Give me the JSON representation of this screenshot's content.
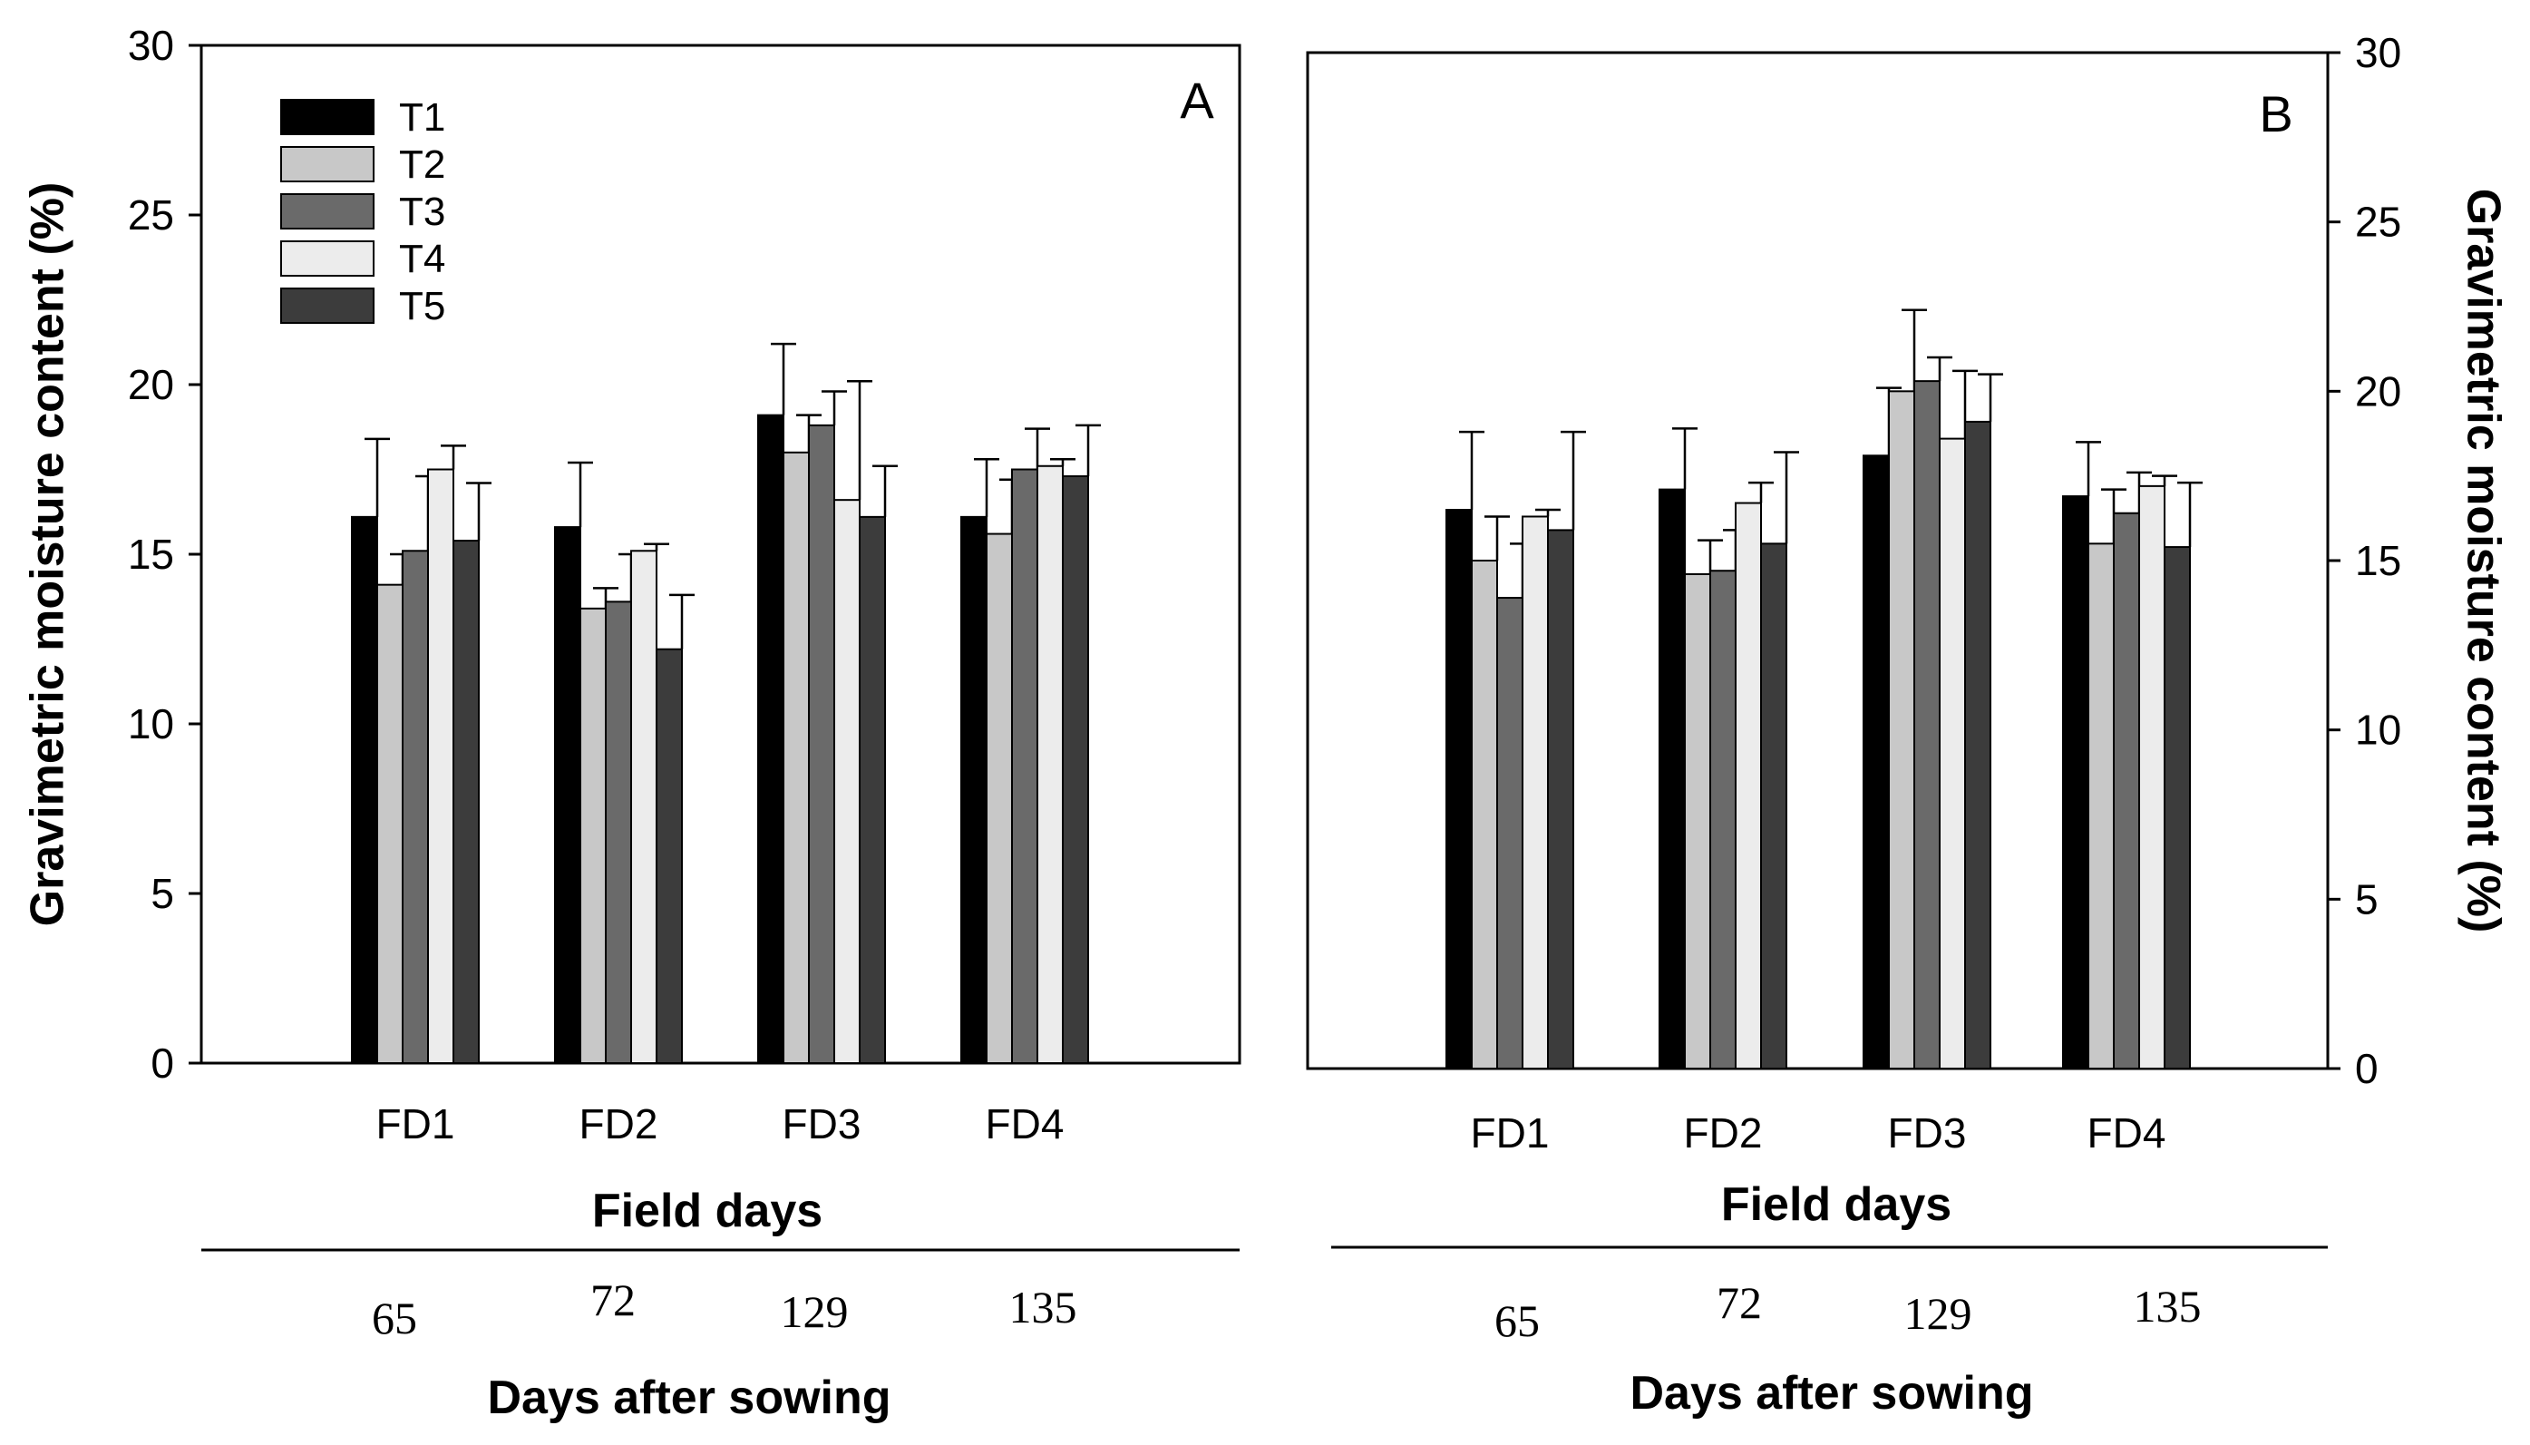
{
  "colors": {
    "T1": "#000000",
    "T2": "#c8c8c8",
    "T3": "#6a6a6a",
    "T4": "#ececec",
    "T5": "#3c3c3c",
    "axis": "#000000"
  },
  "chart_data": [
    {
      "type": "bar",
      "panel_label": "A",
      "ylabel": "Gravimetric moisture content (%)",
      "xlabel": "Field days",
      "secondary_xlabel": "Days after sowing",
      "ylim": [
        0,
        30
      ],
      "yticks": [
        "0",
        "5",
        "10",
        "15",
        "20",
        "25",
        "30"
      ],
      "categories": [
        "FD1",
        "FD2",
        "FD3",
        "FD4"
      ],
      "days_after_sowing": [
        "65",
        "72",
        "129",
        "135"
      ],
      "legend": [
        "T1",
        "T2",
        "T3",
        "T4",
        "T5"
      ],
      "legend_position": "top-left",
      "series": [
        {
          "name": "T1",
          "values": [
            16.1,
            15.8,
            19.1,
            16.1
          ],
          "errors": [
            2.3,
            1.9,
            2.1,
            1.7
          ]
        },
        {
          "name": "T2",
          "values": [
            14.1,
            13.4,
            18.0,
            15.6
          ],
          "errors": [
            0.9,
            0.6,
            1.1,
            1.6
          ]
        },
        {
          "name": "T3",
          "values": [
            15.1,
            13.6,
            18.8,
            17.5
          ],
          "errors": [
            2.2,
            1.4,
            1.0,
            1.2
          ]
        },
        {
          "name": "T4",
          "values": [
            17.5,
            15.1,
            16.6,
            17.6
          ],
          "errors": [
            0.7,
            0.2,
            3.5,
            0.2
          ]
        },
        {
          "name": "T5",
          "values": [
            15.4,
            12.2,
            16.1,
            17.3
          ],
          "errors": [
            1.7,
            1.6,
            1.5,
            1.5
          ]
        }
      ]
    },
    {
      "type": "bar",
      "panel_label": "B",
      "ylabel": "Gravimetric moisture content (%)",
      "xlabel": "Field days",
      "secondary_xlabel": "Days after sowing",
      "ylim": [
        0,
        30
      ],
      "yticks": [
        "0",
        "5",
        "10",
        "15",
        "20",
        "25",
        "30"
      ],
      "categories": [
        "FD1",
        "FD2",
        "FD3",
        "FD4"
      ],
      "days_after_sowing": [
        "65",
        "72",
        "129",
        "135"
      ],
      "series": [
        {
          "name": "T1",
          "values": [
            16.5,
            17.1,
            18.1,
            16.9
          ],
          "errors": [
            2.3,
            1.8,
            2.0,
            1.6
          ]
        },
        {
          "name": "T2",
          "values": [
            15.0,
            14.6,
            20.0,
            15.5
          ],
          "errors": [
            1.3,
            1.0,
            2.4,
            1.6
          ]
        },
        {
          "name": "T3",
          "values": [
            13.9,
            14.7,
            20.3,
            16.4
          ],
          "errors": [
            1.6,
            1.2,
            0.7,
            1.2
          ]
        },
        {
          "name": "T4",
          "values": [
            16.3,
            16.7,
            18.6,
            17.2
          ],
          "errors": [
            0.2,
            0.6,
            2.0,
            0.3
          ]
        },
        {
          "name": "T5",
          "values": [
            15.9,
            15.5,
            19.1,
            15.4
          ],
          "errors": [
            2.9,
            2.7,
            1.4,
            1.9
          ]
        }
      ]
    }
  ]
}
